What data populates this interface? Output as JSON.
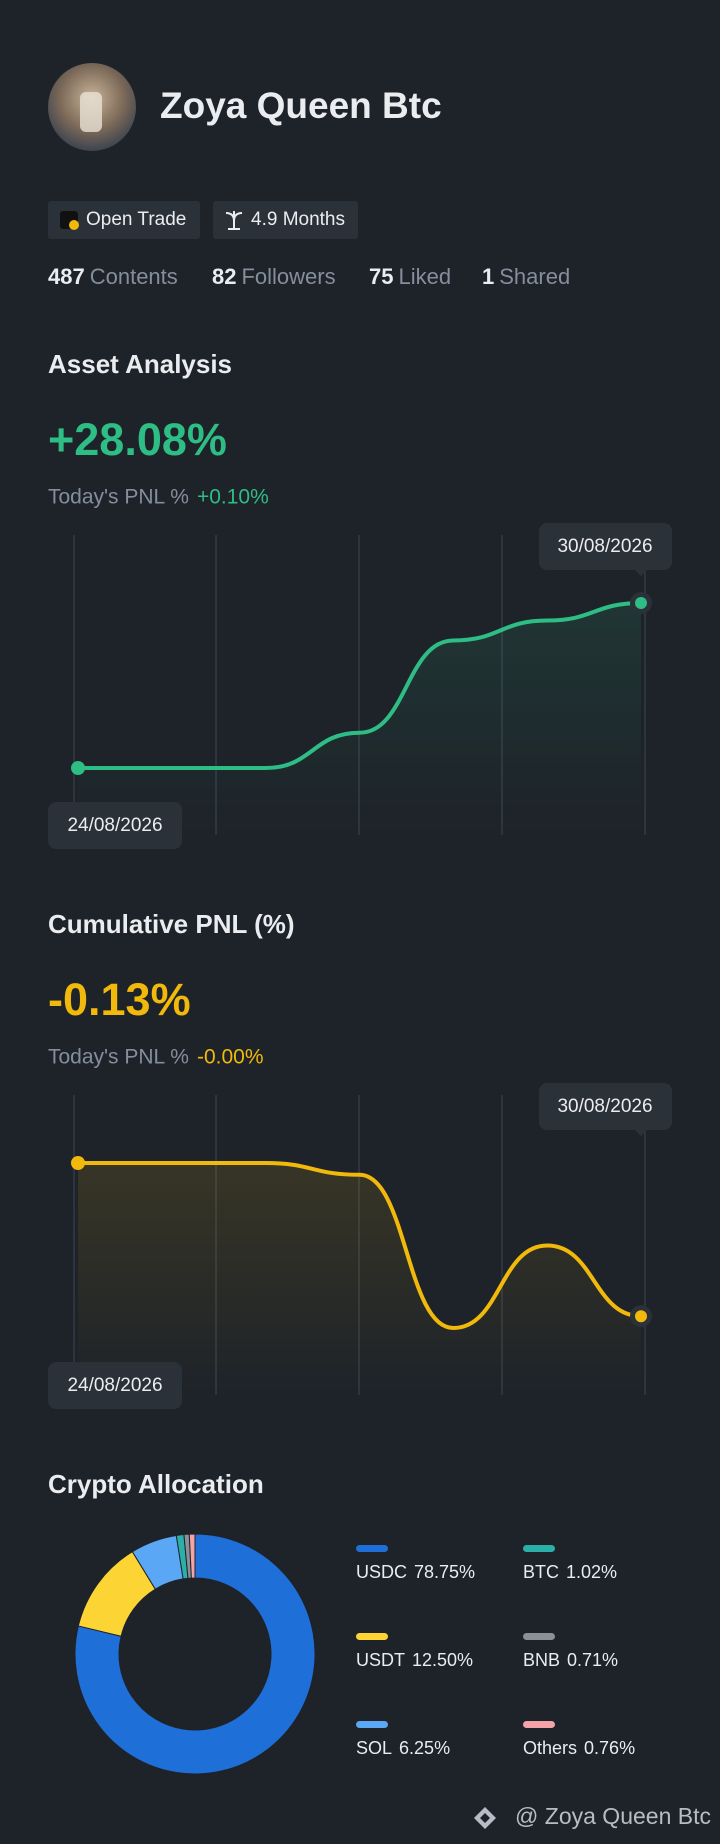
{
  "profile": {
    "name": "Zoya Queen Btc",
    "badges": [
      "Open Trade",
      "4.9 Months"
    ],
    "stats": [
      {
        "value": 487,
        "label": "Contents"
      },
      {
        "value": 82,
        "label": "Followers"
      },
      {
        "value": 75,
        "label": "Liked"
      },
      {
        "value": 1,
        "label": "Shared"
      }
    ]
  },
  "chart_data": [
    {
      "type": "line",
      "title": "Asset Analysis",
      "headline": "+28.08%",
      "today_label": "Today's PNL %",
      "today_value": "+0.10%",
      "categories": [
        "24/08/2026",
        null,
        null,
        null,
        null,
        null,
        "30/08/2026"
      ],
      "series": [
        {
          "color": "#2ebd85",
          "values": [
            0,
            0,
            0,
            6.0,
            21.7,
            25.1,
            28.08
          ]
        }
      ]
    },
    {
      "type": "line",
      "title": "Cumulative PNL (%)",
      "headline": "-0.13%",
      "today_label": "Today's PNL %",
      "today_value": "-0.00%",
      "categories": [
        "24/08/2026",
        null,
        null,
        null,
        null,
        null,
        "30/08/2026"
      ],
      "series": [
        {
          "color": "#f0b90b",
          "values": [
            0,
            0,
            0,
            -0.01,
            -0.14,
            -0.07,
            -0.13
          ]
        }
      ]
    },
    {
      "type": "pie",
      "title": "Crypto Allocation",
      "categories": [
        "USDC",
        "USDT",
        "SOL",
        "BTC",
        "BNB",
        "Others"
      ],
      "values": [
        78.75,
        12.5,
        6.25,
        1.02,
        0.71,
        0.76
      ],
      "value_labels": [
        "78.75%",
        "12.50%",
        "6.25%",
        "1.02%",
        "0.71%",
        "0.76%"
      ],
      "colors": [
        "#1f6fd9",
        "#fcd535",
        "#5aa7f5",
        "#2ab0a8",
        "#8a8f98",
        "#f4a3a8"
      ]
    }
  ],
  "footer": "@ Zoya Queen Btc"
}
